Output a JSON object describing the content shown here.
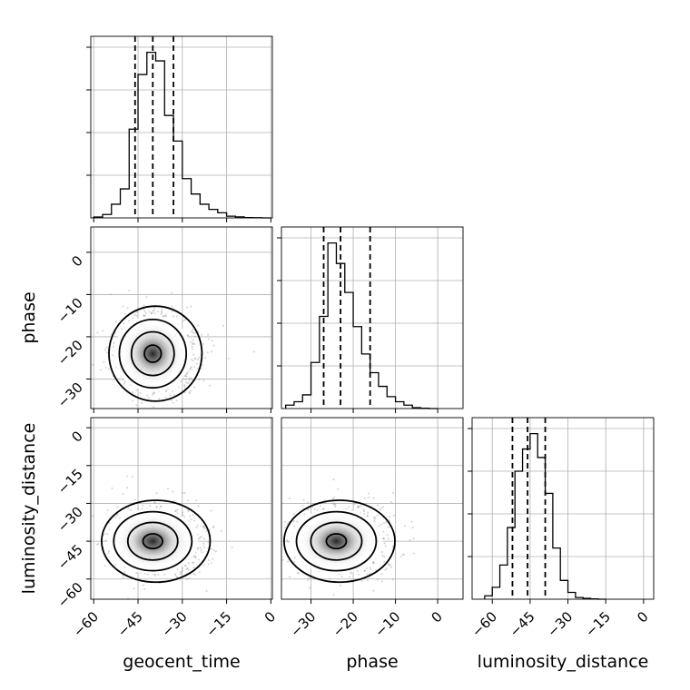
{
  "chart_data": {
    "type": "corner",
    "parameters": [
      "geocent_time",
      "phase",
      "luminosity_distance"
    ],
    "axis_labels": {
      "x": [
        "geocent_time",
        "phase",
        "luminosity_distance"
      ],
      "y": [
        "",
        "phase",
        "luminosity_distance"
      ]
    },
    "ranges": {
      "geocent_time": [
        -61,
        0.5
      ],
      "phase": [
        -37,
        6
      ],
      "luminosity_distance": [
        -68,
        4
      ]
    },
    "ticks": {
      "geocent_time": [
        -60,
        -45,
        -30,
        -15,
        0
      ],
      "phase": [
        -30,
        -20,
        -10,
        0
      ],
      "luminosity_distance": [
        -60,
        -45,
        -30,
        -15,
        0
      ]
    },
    "tick_labels": {
      "geocent_time": [
        "−60",
        "−45",
        "−30",
        "−15",
        "0"
      ],
      "phase": [
        "−30",
        "−20",
        "−10",
        "0"
      ],
      "luminosity_distance": [
        "−60",
        "−45",
        "−30",
        "−15",
        "0"
      ]
    },
    "quantiles": {
      "geocent_time": [
        -46,
        -40,
        -33
      ],
      "phase": [
        -27,
        -23,
        -16
      ],
      "luminosity_distance": [
        -52,
        -46,
        -39
      ]
    },
    "histograms": {
      "geocent_time": {
        "edges": [
          -60,
          -57,
          -54,
          -51,
          -48,
          -45,
          -42,
          -39,
          -36,
          -33,
          -30,
          -27,
          -24,
          -21,
          -18,
          -15,
          -12,
          -9,
          -6,
          -3,
          0
        ],
        "counts": [
          0.005,
          0.02,
          0.08,
          0.17,
          0.52,
          0.84,
          0.97,
          0.92,
          0.6,
          0.45,
          0.23,
          0.14,
          0.08,
          0.05,
          0.03,
          0.01,
          0.006,
          0.002,
          0.001,
          0
        ]
      },
      "phase": {
        "edges": [
          -36,
          -34,
          -32,
          -30,
          -28,
          -26,
          -24,
          -22,
          -20,
          -18,
          -16,
          -14,
          -12,
          -10,
          -8,
          -6,
          -4,
          -2,
          0
        ],
        "counts": [
          0.02,
          0.04,
          0.08,
          0.27,
          0.54,
          0.97,
          0.85,
          0.68,
          0.48,
          0.32,
          0.21,
          0.13,
          0.07,
          0.04,
          0.02,
          0.005,
          0.002,
          0
        ]
      },
      "luminosity_distance": {
        "edges": [
          -63,
          -60,
          -57,
          -54,
          -51,
          -48,
          -45,
          -42,
          -39,
          -36,
          -33,
          -30,
          -27,
          -24,
          -21,
          -18,
          -15
        ],
        "counts": [
          0.02,
          0.07,
          0.2,
          0.42,
          0.75,
          0.88,
          0.97,
          0.83,
          0.62,
          0.3,
          0.11,
          0.04,
          0.01,
          0.005,
          0.002,
          0
        ]
      }
    },
    "densities_2d": [
      {
        "x": "geocent_time",
        "y": "phase",
        "center": [
          -40,
          -24
        ],
        "spread": [
          6,
          4.5
        ],
        "levels": [
          0.12,
          0.39,
          0.68,
          0.86
        ]
      },
      {
        "x": "geocent_time",
        "y": "luminosity_distance",
        "center": [
          -40,
          -45
        ],
        "spread": [
          7,
          6.5
        ],
        "levels": [
          0.12,
          0.39,
          0.68,
          0.86
        ]
      },
      {
        "x": "phase",
        "y": "luminosity_distance",
        "center": [
          -24,
          -45
        ],
        "spread": [
          5,
          6.5
        ],
        "levels": [
          0.12,
          0.39,
          0.68,
          0.86
        ]
      }
    ],
    "grid": true,
    "colors": {
      "hist": "#000000",
      "contour": "#000000",
      "scatter": "#808080",
      "quantile": "#000000",
      "grid": "#b0b0b0"
    }
  }
}
